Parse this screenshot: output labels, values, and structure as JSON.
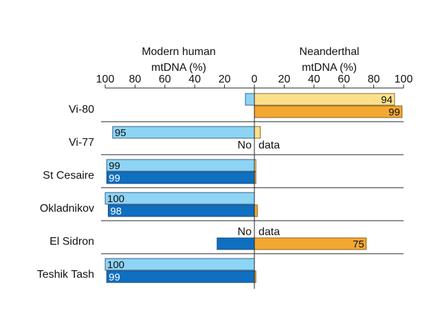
{
  "chart_data": {
    "type": "bar",
    "orientation": "horizontal",
    "layout": "diverging",
    "left_axis": {
      "title_lines": [
        "Modern human",
        "mtDNA (%)"
      ],
      "range": [
        0,
        100
      ],
      "ticks": [
        "100",
        "80",
        "60",
        "40",
        "20",
        "0"
      ]
    },
    "right_axis": {
      "title_lines": [
        "Neanderthal",
        "mtDNA (%)"
      ],
      "range": [
        0,
        100
      ],
      "ticks": [
        "0",
        "20",
        "40",
        "60",
        "80",
        "100"
      ]
    },
    "colors": {
      "modern_light": "#8dd4f5",
      "modern_dark": "#0f6fc0",
      "neanderthal_light": "#fce08c",
      "neanderthal_dark": "#f3a832"
    },
    "categories": [
      {
        "name": "Vi-80",
        "rows": [
          {
            "modern": 6,
            "neanderthal": 94,
            "neanderthal_label": "94",
            "shade": "light"
          },
          {
            "modern": 0,
            "neanderthal": 99,
            "neanderthal_label": "99",
            "shade": "dark"
          }
        ]
      },
      {
        "name": "Vi-77",
        "rows": [
          {
            "modern": 95,
            "modern_label": "95",
            "neanderthal": 4,
            "shade": "light"
          },
          {
            "no_data": true,
            "no_data_words": [
              "No",
              "data"
            ]
          }
        ]
      },
      {
        "name": "St Cesaire",
        "rows": [
          {
            "modern": 99,
            "modern_label": "99",
            "neanderthal": 1,
            "shade": "light"
          },
          {
            "modern": 99,
            "modern_label": "99",
            "neanderthal": 1,
            "shade": "dark"
          }
        ]
      },
      {
        "name": "Okladnikov",
        "rows": [
          {
            "modern": 100,
            "modern_label": "100",
            "neanderthal": 0,
            "shade": "light"
          },
          {
            "modern": 98,
            "modern_label": "98",
            "neanderthal": 2,
            "shade": "dark"
          }
        ]
      },
      {
        "name": "El Sidron",
        "rows": [
          {
            "no_data": true,
            "no_data_words": [
              "No",
              "data"
            ]
          },
          {
            "modern": 25,
            "neanderthal": 75,
            "neanderthal_label": "75",
            "shade": "dark"
          }
        ]
      },
      {
        "name": "Teshik Tash",
        "rows": [
          {
            "modern": 100,
            "modern_label": "100",
            "neanderthal": 0,
            "shade": "light"
          },
          {
            "modern": 99,
            "modern_label": "99",
            "neanderthal": 1,
            "shade": "dark"
          }
        ]
      }
    ]
  }
}
